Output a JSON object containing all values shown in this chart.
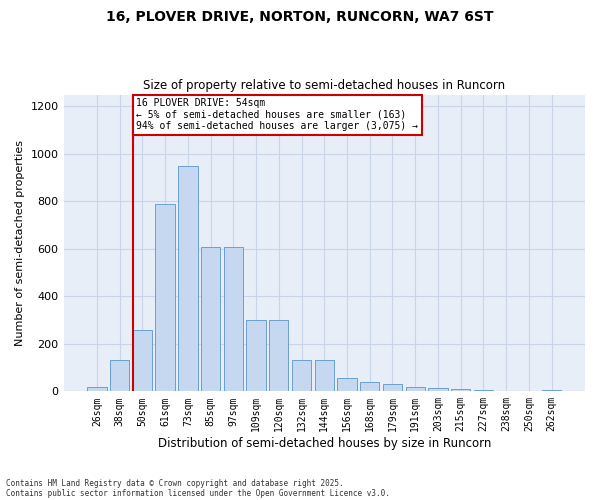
{
  "title_line1": "16, PLOVER DRIVE, NORTON, RUNCORN, WA7 6ST",
  "title_line2": "Size of property relative to semi-detached houses in Runcorn",
  "xlabel": "Distribution of semi-detached houses by size in Runcorn",
  "ylabel": "Number of semi-detached properties",
  "categories": [
    "26sqm",
    "38sqm",
    "50sqm",
    "61sqm",
    "73sqm",
    "85sqm",
    "97sqm",
    "109sqm",
    "120sqm",
    "132sqm",
    "144sqm",
    "156sqm",
    "168sqm",
    "179sqm",
    "191sqm",
    "203sqm",
    "215sqm",
    "227sqm",
    "238sqm",
    "250sqm",
    "262sqm"
  ],
  "values": [
    20,
    130,
    260,
    790,
    950,
    610,
    610,
    300,
    300,
    130,
    130,
    55,
    40,
    30,
    18,
    15,
    8,
    4,
    2,
    1,
    5
  ],
  "bar_color": "#c5d8f0",
  "bar_edge_color": "#6a9fd4",
  "vline_index": 2,
  "annotation_text": "16 PLOVER DRIVE: 54sqm\n← 5% of semi-detached houses are smaller (163)\n94% of semi-detached houses are larger (3,075) →",
  "annotation_box_color": "#ffffff",
  "annotation_box_edge": "#cc0000",
  "vline_color": "#cc0000",
  "ylim": [
    0,
    1250
  ],
  "yticks": [
    0,
    200,
    400,
    600,
    800,
    1000,
    1200
  ],
  "grid_color": "#c8d4e8",
  "bg_color": "#e8eef8",
  "footnote1": "Contains HM Land Registry data © Crown copyright and database right 2025.",
  "footnote2": "Contains public sector information licensed under the Open Government Licence v3.0."
}
